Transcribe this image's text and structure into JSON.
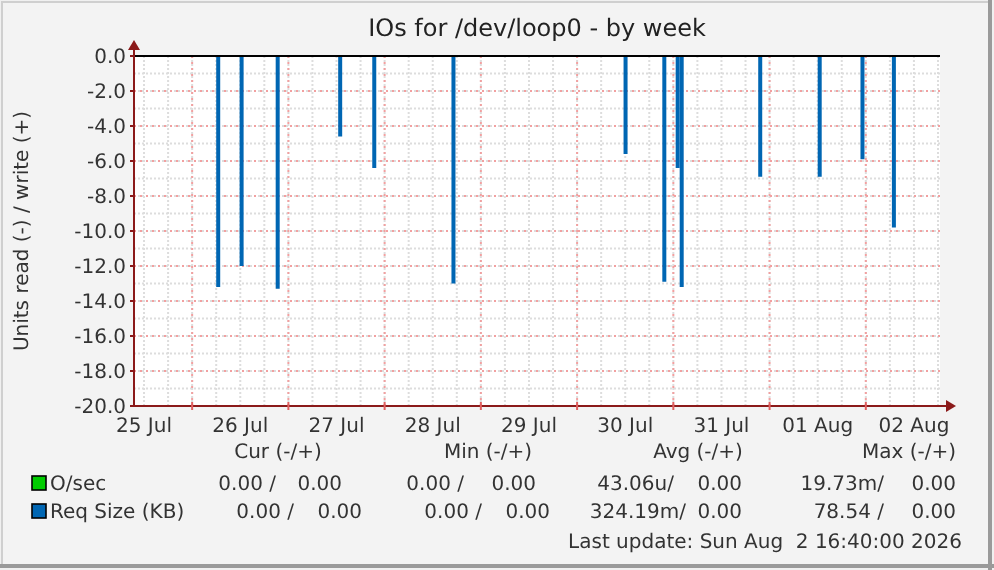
{
  "chart_data": {
    "type": "bar",
    "title": "IOs for /dev/loop0 - by week",
    "ylabel": "Units read (-) / write (+)",
    "xlim": [
      "2026-07-25T09:30",
      "2026-08-02T18:30"
    ],
    "xticks": [
      {
        "value": "2026-07-25T12:00",
        "label": "25 Jul"
      },
      {
        "value": "2026-07-26T12:00",
        "label": "26 Jul"
      },
      {
        "value": "2026-07-27T12:00",
        "label": "27 Jul"
      },
      {
        "value": "2026-07-28T12:00",
        "label": "28 Jul"
      },
      {
        "value": "2026-07-29T12:00",
        "label": "29 Jul"
      },
      {
        "value": "2026-07-30T12:00",
        "label": "30 Jul"
      },
      {
        "value": "2026-07-31T12:00",
        "label": "31 Jul"
      },
      {
        "value": "2026-08-01T12:00",
        "label": "01 Aug"
      },
      {
        "value": "2026-08-02T12:00",
        "label": "02 Aug"
      }
    ],
    "ylim": [
      -20,
      0
    ],
    "yticks": [
      {
        "value": -20,
        "label": "-20.0"
      },
      {
        "value": -18,
        "label": "-18.0"
      },
      {
        "value": -16,
        "label": "-16.0"
      },
      {
        "value": -14,
        "label": "-14.0"
      },
      {
        "value": -12,
        "label": "-12.0"
      },
      {
        "value": -10,
        "label": "-10.0"
      },
      {
        "value": -8,
        "label": "-8.0"
      },
      {
        "value": -6,
        "label": "-6.0"
      },
      {
        "value": -4,
        "label": "-4.0"
      },
      {
        "value": -2,
        "label": "-2.0"
      },
      {
        "value": 0,
        "label": "0.0"
      }
    ],
    "grid": true,
    "legend": "bottom left",
    "series": [
      {
        "name": "O/sec",
        "color": "#00cc00"
      },
      {
        "name": "Req Size (KB)",
        "color": "#0066b3",
        "x": [
          "2026-07-26T06:30",
          "2026-07-26T12:20",
          "2026-07-26T21:20",
          "2026-07-27T12:55",
          "2026-07-27T21:25",
          "2026-07-28T17:10",
          "2026-07-30T12:05",
          "2026-07-30T21:45",
          "2026-07-31T01:05",
          "2026-07-31T02:05",
          "2026-07-31T21:40",
          "2026-08-01T12:30",
          "2026-08-01T23:10",
          "2026-08-02T07:00"
        ],
        "values": [
          -13.2,
          -12.0,
          -13.3,
          -4.6,
          -6.4,
          -13.0,
          -5.6,
          -12.9,
          -6.4,
          -13.2,
          -6.9,
          -6.9,
          -5.9,
          -9.8
        ]
      }
    ],
    "annotations": [
      "Cur (-/+)",
      "Min (-/+)",
      "Avg (-/+)",
      "Max (-/+)",
      "0.00 /",
      "0.00",
      "0.00 /",
      "0.00",
      "43.06u/",
      "0.00",
      "19.73m/",
      "0.00",
      "0.00 /",
      "0.00",
      "0.00 /",
      "0.00",
      "324.19m/",
      "0.00",
      "78.54 /",
      "0.00",
      "Last update: Sun Aug  2 16:40:00 2026"
    ]
  }
}
